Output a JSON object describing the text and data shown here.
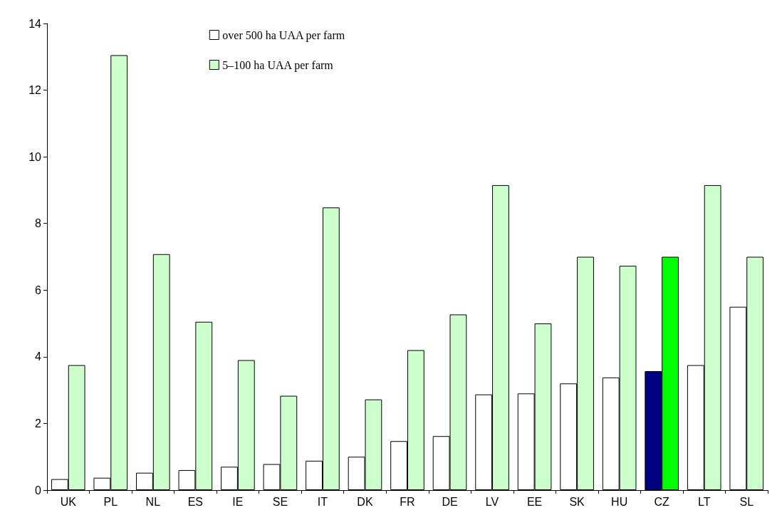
{
  "chart_data": {
    "type": "bar",
    "categories": [
      "UK",
      "PL",
      "NL",
      "ES",
      "IE",
      "SE",
      "IT",
      "DK",
      "FR",
      "DE",
      "LV",
      "EE",
      "SK",
      "HU",
      "CZ",
      "LT",
      "SL"
    ],
    "series": [
      {
        "name": "over 500 ha UAA per farm",
        "color": "#ffffff",
        "colors": [
          "#ffffff",
          "#ffffff",
          "#ffffff",
          "#ffffff",
          "#ffffff",
          "#ffffff",
          "#ffffff",
          "#ffffff",
          "#ffffff",
          "#ffffff",
          "#ffffff",
          "#ffffff",
          "#ffffff",
          "#ffffff",
          "#000080",
          "#ffffff",
          "#ffffff"
        ],
        "values": [
          0.33,
          0.37,
          0.52,
          0.6,
          0.7,
          0.78,
          0.88,
          1.0,
          1.47,
          1.62,
          2.87,
          2.9,
          3.2,
          3.38,
          3.57,
          3.75,
          5.5
        ]
      },
      {
        "name": "5–100 ha UAA per farm",
        "color": "#ccffcc",
        "colors": [
          "#ccffcc",
          "#ccffcc",
          "#ccffcc",
          "#ccffcc",
          "#ccffcc",
          "#ccffcc",
          "#ccffcc",
          "#ccffcc",
          "#ccffcc",
          "#ccffcc",
          "#ccffcc",
          "#ccffcc",
          "#ccffcc",
          "#ccffcc",
          "#00ff00",
          "#ccffcc",
          "#ccffcc"
        ],
        "values": [
          3.75,
          13.05,
          7.08,
          5.05,
          3.9,
          2.83,
          8.48,
          2.72,
          4.2,
          5.27,
          9.15,
          5.0,
          7.0,
          6.73,
          7.0,
          9.15,
          7.0
        ]
      }
    ],
    "ylim": [
      0,
      14
    ],
    "yticks": [
      0,
      2,
      4,
      6,
      8,
      10,
      12,
      14
    ],
    "grid": false,
    "legend": "top left"
  }
}
